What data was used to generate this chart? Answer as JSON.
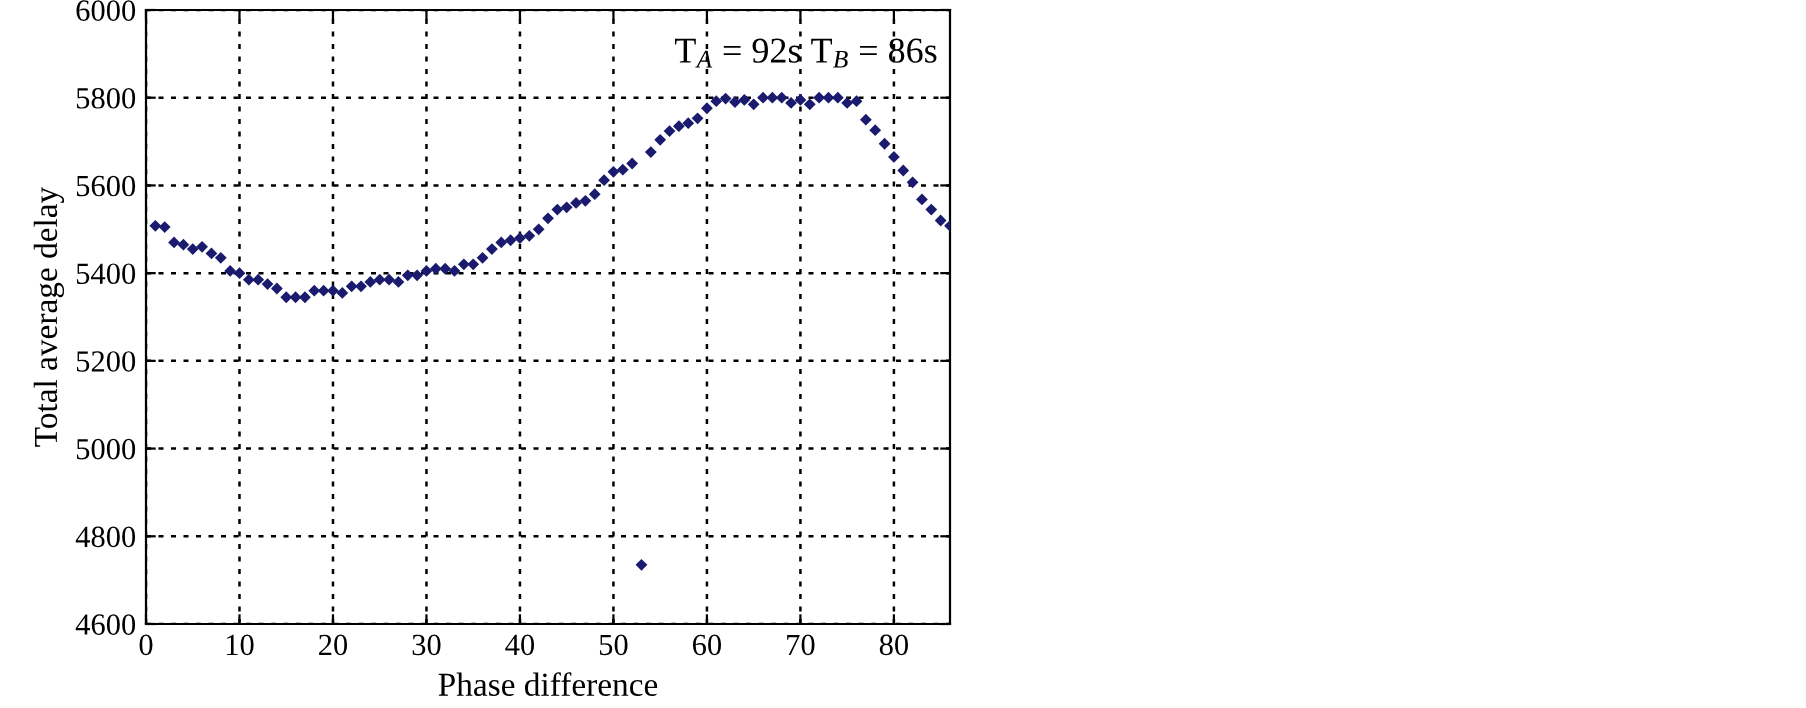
{
  "chart_data": {
    "type": "scatter",
    "xlabel": "Phase difference",
    "ylabel": "Total average delay",
    "annotations": [
      "T$_{A}$ = 92s T$_{B}$ = 86s"
    ],
    "x": [
      1,
      2,
      3,
      4,
      5,
      6,
      7,
      8,
      9,
      10,
      11,
      12,
      13,
      14,
      15,
      16,
      17,
      18,
      19,
      20,
      21,
      22,
      23,
      24,
      25,
      26,
      27,
      28,
      29,
      30,
      31,
      32,
      33,
      34,
      35,
      36,
      37,
      38,
      39,
      40,
      41,
      42,
      43,
      44,
      45,
      46,
      47,
      48,
      49,
      50,
      51,
      52,
      53,
      54,
      55,
      56,
      57,
      58,
      59,
      60,
      61,
      62,
      63,
      64,
      65,
      66,
      67,
      68,
      69,
      70,
      71,
      72,
      73,
      74,
      75,
      76,
      77,
      78,
      79,
      80,
      81,
      82,
      83,
      84,
      85,
      86
    ],
    "series": [
      {
        "color": "#1a1a6e",
        "values": [
          5508,
          5505,
          5470,
          5465,
          5455,
          5460,
          5445,
          5435,
          5405,
          5400,
          5385,
          5385,
          5375,
          5365,
          5345,
          5345,
          5345,
          5360,
          5360,
          5360,
          5355,
          5370,
          5370,
          5380,
          5385,
          5385,
          5380,
          5395,
          5395,
          5405,
          5410,
          5410,
          5405,
          5420,
          5420,
          5435,
          5455,
          5470,
          5475,
          5480,
          5485,
          5500,
          5525,
          5545,
          5550,
          5560,
          5565,
          5580,
          5612,
          5631,
          5636,
          5650,
          4735,
          5676,
          5704,
          5724,
          5735,
          5742,
          5753,
          5776,
          5792,
          5798,
          5790,
          5795,
          5785,
          5800,
          5800,
          5800,
          5788,
          5795,
          5785,
          5800,
          5800,
          5800,
          5788,
          5792,
          5750,
          5726,
          5695,
          5665,
          5634,
          5607,
          5568,
          5545,
          5520,
          5508
        ]
      }
    ],
    "xlim": [
      0,
      86
    ],
    "ylim": [
      4600,
      6000
    ],
    "xticks": [
      0,
      10,
      20,
      30,
      40,
      50,
      60,
      70,
      80
    ],
    "yticks": [
      4600,
      4800,
      5000,
      5200,
      5400,
      5600,
      5800,
      6000
    ],
    "grid": true,
    "marker": "diamond"
  }
}
